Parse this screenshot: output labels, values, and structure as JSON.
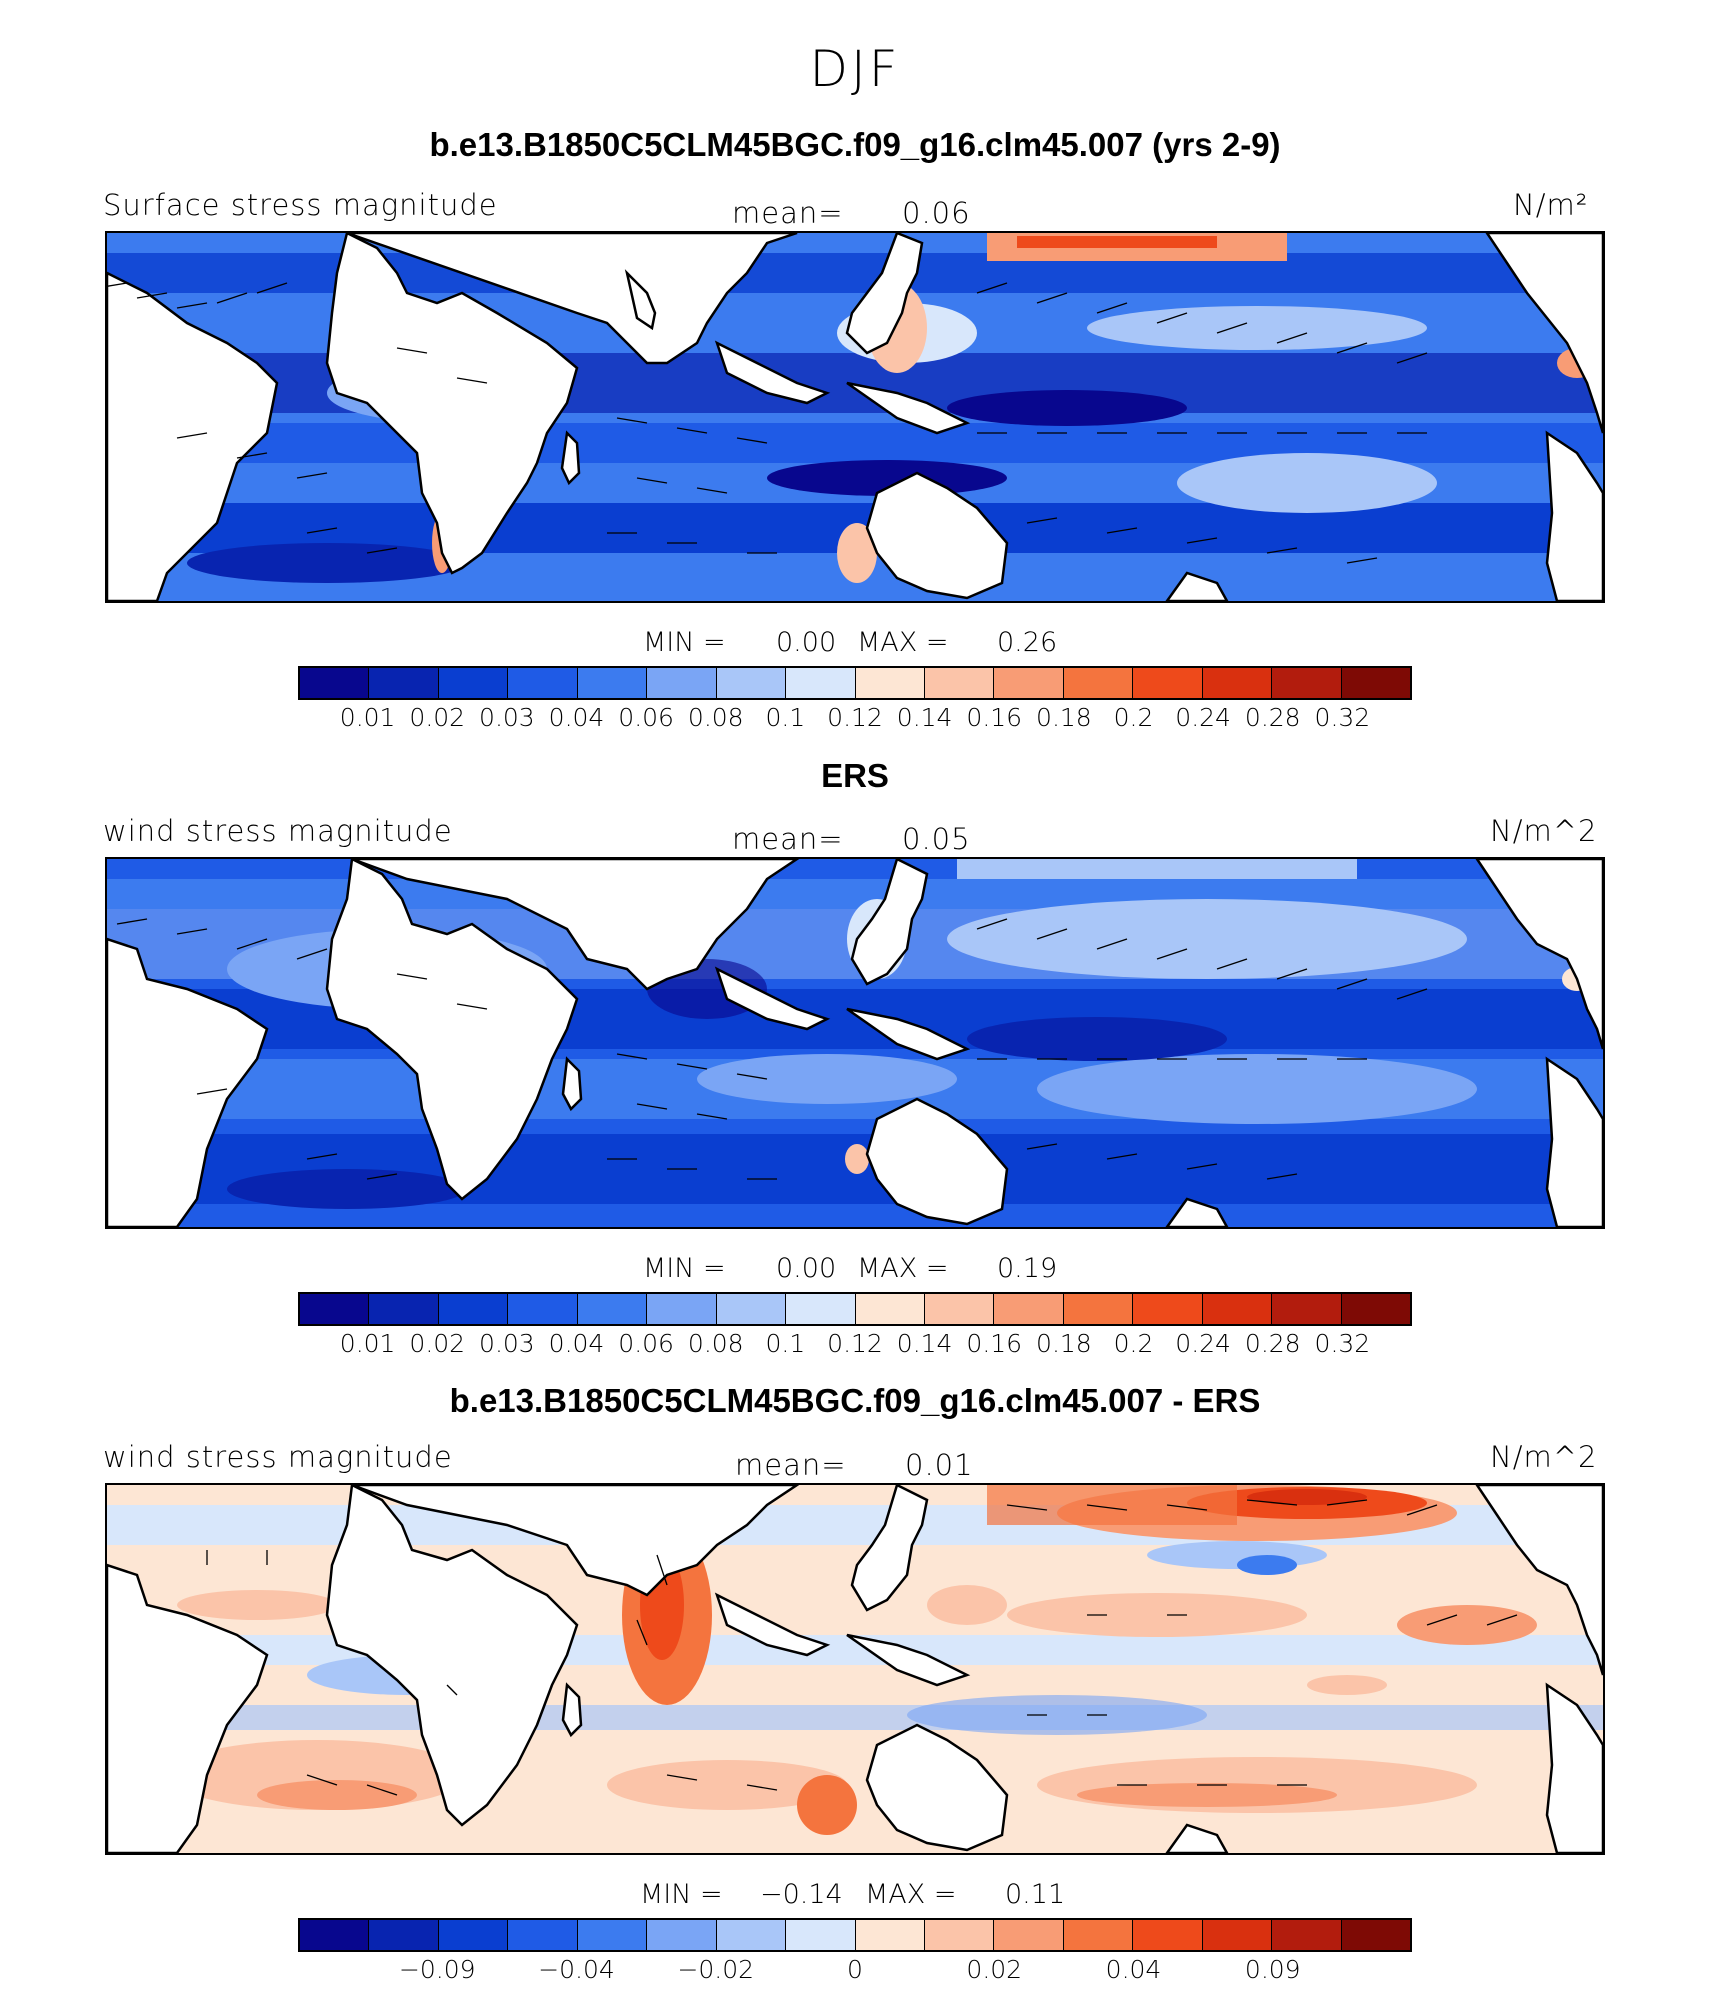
{
  "title": "DJF",
  "palette": [
    "#08078e",
    "#0824b0",
    "#0a3ed0",
    "#1f5be6",
    "#3c7bef",
    "#7aa5f5",
    "#a9c6f8",
    "#d8e7fb",
    "#fde6d4",
    "#fbc4a9",
    "#f89c75",
    "#f4743e",
    "#ee4a1b",
    "#d9300f",
    "#b21c0d",
    "#7e0a05"
  ],
  "panels": [
    {
      "title": "b.e13.B1850C5CLM45BGC.f09_g16.clm45.007 (yrs 2-9)",
      "left_label": "Surface stress magnitude",
      "mean_label": "mean=",
      "mean_value": "0.06",
      "units": "N/m²",
      "min_label": "MIN =",
      "min_value": "0.00",
      "max_label": "MAX =",
      "max_value": "0.26",
      "colorbar_ticks": [
        "0.01",
        "0.02",
        "0.03",
        "0.04",
        "0.06",
        "0.08",
        "0.1",
        "0.12",
        "0.14",
        "0.16",
        "0.18",
        "0.2",
        "0.24",
        "0.28",
        "0.32"
      ]
    },
    {
      "title": "ERS",
      "left_label": "wind stress magnitude",
      "mean_label": "mean=",
      "mean_value": "0.05",
      "units": "N/m^2",
      "min_label": "MIN =",
      "min_value": "0.00",
      "max_label": "MAX =",
      "max_value": "0.19",
      "colorbar_ticks": [
        "0.01",
        "0.02",
        "0.03",
        "0.04",
        "0.06",
        "0.08",
        "0.1",
        "0.12",
        "0.14",
        "0.16",
        "0.18",
        "0.2",
        "0.24",
        "0.28",
        "0.32"
      ]
    },
    {
      "title": "b.e13.B1850C5CLM45BGC.f09_g16.clm45.007 - ERS",
      "left_label": "wind stress magnitude",
      "mean_label": "mean=",
      "mean_value": "0.01",
      "units": "N/m^2",
      "min_label": "MIN =",
      "min_value": "−0.14",
      "max_label": "MAX =",
      "max_value": "0.11",
      "colorbar_ticks": [
        "−0.09",
        "−0.04",
        "−0.02",
        "0",
        "0.02",
        "0.04",
        "0.09"
      ]
    }
  ]
}
